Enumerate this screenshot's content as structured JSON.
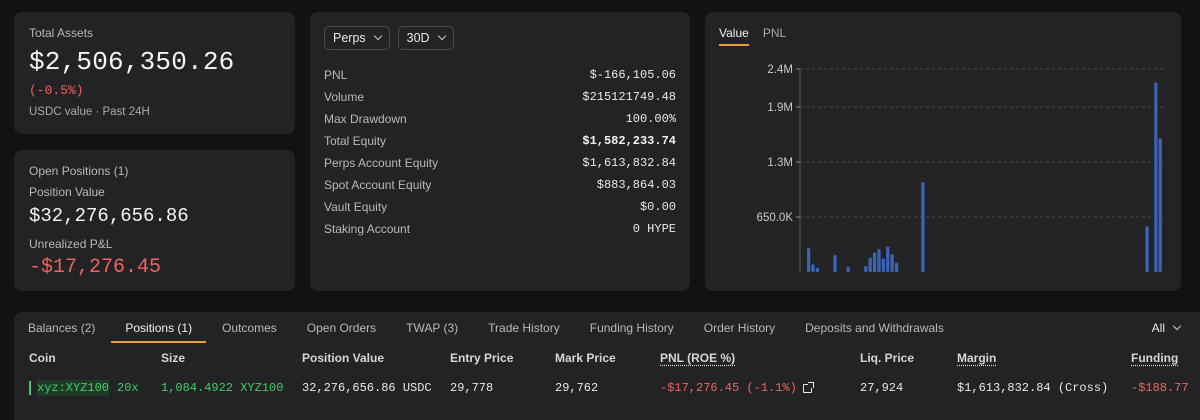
{
  "summary": {
    "total_assets_label": "Total Assets",
    "total_assets_value": "$2,506,350.26",
    "total_assets_change": "(-0.5%)",
    "total_assets_sub": "USDC value · Past 24H"
  },
  "open_positions": {
    "title": "Open Positions (1)",
    "position_value_label": "Position Value",
    "position_value": "$32,276,656.86",
    "unrealized_label": "Unrealized P&L",
    "unrealized_value": "-$17,276.45"
  },
  "stats": {
    "market_select": "Perps",
    "range_select": "30D",
    "rows": [
      {
        "label": "PNL",
        "value": "$-166,105.06"
      },
      {
        "label": "Volume",
        "value": "$215121749.48"
      },
      {
        "label": "Max Drawdown",
        "value": "100.00%"
      },
      {
        "label": "Total Equity",
        "value": "$1,582,233.74"
      },
      {
        "label": "Perps Account Equity",
        "value": "$1,613,832.84"
      },
      {
        "label": "Spot Account Equity",
        "value": "$883,864.03"
      },
      {
        "label": "Vault Equity",
        "value": "$0.00"
      },
      {
        "label": "Staking Account",
        "value": "0 HYPE"
      }
    ]
  },
  "chart_tabs": {
    "value": "Value",
    "pnl": "PNL"
  },
  "chart_data": {
    "type": "bar",
    "ylim": [
      0,
      2600000
    ],
    "y_ticks": [
      {
        "value": 650000,
        "label": "650.0K"
      },
      {
        "value": 1300000,
        "label": "1.3M"
      },
      {
        "value": 1950000,
        "label": "1.9M"
      },
      {
        "value": 2400000,
        "label": "2.4M"
      }
    ],
    "values": [
      280000,
      90000,
      50000,
      0,
      0,
      0,
      200000,
      0,
      0,
      60000,
      0,
      0,
      0,
      70000,
      170000,
      230000,
      270000,
      160000,
      300000,
      210000,
      110000,
      0,
      0,
      0,
      0,
      0,
      1060000,
      0,
      0,
      0,
      0,
      0,
      0,
      0,
      0,
      0,
      0,
      0,
      0,
      0,
      0,
      0,
      0,
      0,
      0,
      0,
      0,
      0,
      0,
      0,
      0,
      0,
      0,
      0,
      0,
      0,
      0,
      0,
      0,
      0,
      0,
      0,
      0,
      0,
      0,
      0,
      0,
      0,
      0,
      0,
      0,
      0,
      0,
      0,
      0,
      0,
      0,
      540000,
      0,
      2240000,
      1580000
    ],
    "bar_color": "#3a63b6"
  },
  "bottom_tabs": {
    "items": [
      "Balances (2)",
      "Positions (1)",
      "Outcomes",
      "Open Orders",
      "TWAP (3)",
      "Trade History",
      "Funding History",
      "Order History",
      "Deposits and Withdrawals"
    ],
    "filter": "All"
  },
  "table": {
    "headers": {
      "coin": "Coin",
      "size": "Size",
      "position_value": "Position Value",
      "entry_price": "Entry Price",
      "mark_price": "Mark Price",
      "pnl": "PNL (ROE %)",
      "liq_price": "Liq. Price",
      "margin": "Margin",
      "funding": "Funding"
    },
    "row": {
      "coin": "xyz:XYZ100",
      "leverage": "20x",
      "size": "1,084.4922 XYZ100",
      "position_value": "32,276,656.86 USDC",
      "entry_price": "29,778",
      "mark_price": "29,762",
      "pnl": "-$17,276.45 (-1.1%)",
      "liq_price": "27,924",
      "margin": "$1,613,832.84 (Cross)",
      "funding": "-$188.77"
    }
  }
}
